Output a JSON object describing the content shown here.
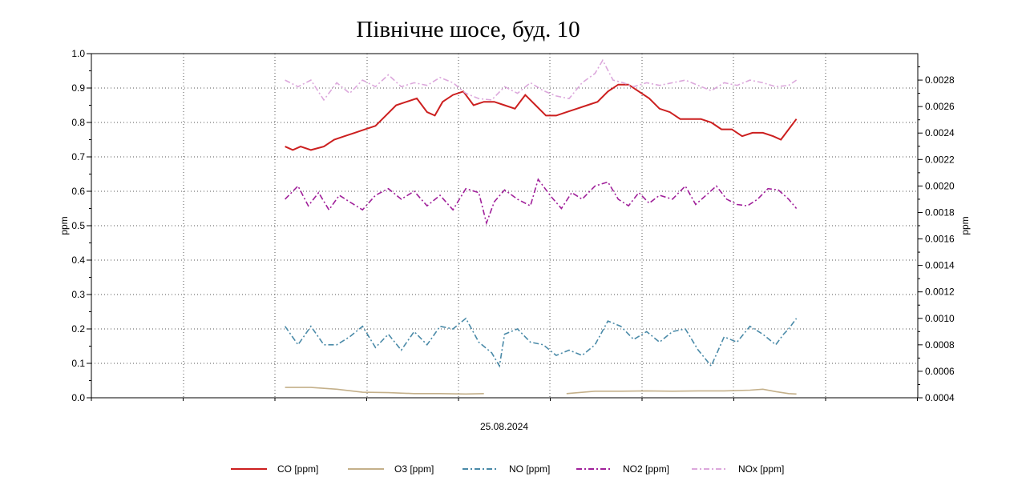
{
  "chart_data": {
    "type": "line",
    "title": "Північне шосе, буд. 10",
    "xlabel": "25.08.2024",
    "ylabel_left": "ppm",
    "ylabel_right": "ppm",
    "ylim_left": [
      0,
      1.0
    ],
    "ylim_right": [
      0.0004,
      0.003
    ],
    "left_ticks": [
      "0.0",
      "0.1",
      "0.2",
      "0.3",
      "0.4",
      "0.5",
      "0.6",
      "0.7",
      "0.8",
      "0.9",
      "1.0"
    ],
    "right_ticks": [
      "0.0004",
      "0.0006",
      "0.0008",
      "0.0010",
      "0.0012",
      "0.0014",
      "0.0016",
      "0.0018",
      "0.0020",
      "0.0022",
      "0.0024",
      "0.0026",
      "0.0028"
    ],
    "x_range_hours": [
      0,
      24
    ],
    "grid": true,
    "legend_position": "bottom",
    "series": [
      {
        "name": "CO [ppm]",
        "axis": "left",
        "color": "#cc1f1f",
        "dash": "solid",
        "points": [
          [
            7.5,
            0.73
          ],
          [
            7.8,
            0.72
          ],
          [
            8.1,
            0.73
          ],
          [
            8.5,
            0.72
          ],
          [
            9.0,
            0.73
          ],
          [
            9.4,
            0.75
          ],
          [
            9.8,
            0.76
          ],
          [
            10.2,
            0.77
          ],
          [
            10.6,
            0.78
          ],
          [
            11.0,
            0.79
          ],
          [
            11.4,
            0.82
          ],
          [
            11.8,
            0.85
          ],
          [
            12.2,
            0.86
          ],
          [
            12.6,
            0.87
          ],
          [
            13.0,
            0.83
          ],
          [
            13.3,
            0.82
          ],
          [
            13.6,
            0.86
          ],
          [
            14.0,
            0.88
          ],
          [
            14.4,
            0.89
          ],
          [
            14.8,
            0.85
          ],
          [
            15.2,
            0.86
          ],
          [
            15.6,
            0.86
          ],
          [
            16.0,
            0.85
          ],
          [
            16.4,
            0.84
          ],
          [
            16.8,
            0.88
          ],
          [
            17.2,
            0.85
          ],
          [
            17.6,
            0.82
          ],
          [
            18.0,
            0.82
          ],
          [
            18.4,
            0.83
          ],
          [
            18.8,
            0.84
          ],
          [
            19.2,
            0.85
          ],
          [
            19.6,
            0.86
          ],
          [
            20.0,
            0.89
          ],
          [
            20.4,
            0.91
          ],
          [
            20.8,
            0.91
          ],
          [
            21.2,
            0.89
          ],
          [
            21.6,
            0.87
          ],
          [
            22.0,
            0.84
          ],
          [
            22.4,
            0.83
          ],
          [
            22.8,
            0.81
          ],
          [
            23.2,
            0.81
          ],
          [
            23.6,
            0.81
          ],
          [
            24.0,
            0.8
          ],
          [
            24.4,
            0.78
          ],
          [
            24.8,
            0.78
          ],
          [
            25.2,
            0.76
          ],
          [
            25.6,
            0.77
          ],
          [
            26.0,
            0.77
          ],
          [
            26.4,
            0.76
          ],
          [
            26.7,
            0.75
          ],
          [
            27.0,
            0.78
          ],
          [
            27.3,
            0.81
          ]
        ]
      },
      {
        "name": "O3 [ppm]",
        "axis": "left",
        "color": "#c4b08a",
        "dash": "solid",
        "points": [
          [
            7.5,
            0.03
          ],
          [
            8.5,
            0.03
          ],
          [
            9.5,
            0.025
          ],
          [
            10.5,
            0.016
          ],
          [
            11.5,
            0.015
          ],
          [
            12.5,
            0.012
          ],
          [
            13.5,
            0.012
          ],
          [
            14.5,
            0.011
          ],
          [
            15.2,
            0.012
          ],
          [
            null,
            null
          ],
          [
            18.4,
            0.012
          ],
          [
            19.5,
            0.019
          ],
          [
            20.5,
            0.019
          ],
          [
            21.5,
            0.02
          ],
          [
            22.5,
            0.019
          ],
          [
            23.5,
            0.02
          ],
          [
            24.5,
            0.02
          ],
          [
            25.5,
            0.022
          ],
          [
            26.0,
            0.025
          ],
          [
            26.5,
            0.018
          ],
          [
            27.0,
            0.012
          ],
          [
            27.3,
            0.011
          ]
        ]
      },
      {
        "name": "NO [ppm]",
        "axis": "right",
        "color": "#4a8aa8",
        "dash": "dashdot",
        "points": [
          [
            7.5,
            0.00094
          ],
          [
            8.0,
            0.0008
          ],
          [
            8.5,
            0.00094
          ],
          [
            9.0,
            0.0008
          ],
          [
            9.5,
            0.0008
          ],
          [
            10.0,
            0.00086
          ],
          [
            10.5,
            0.00094
          ],
          [
            11.0,
            0.00078
          ],
          [
            11.5,
            0.00088
          ],
          [
            12.0,
            0.00076
          ],
          [
            12.5,
            0.0009
          ],
          [
            13.0,
            0.0008
          ],
          [
            13.5,
            0.00094
          ],
          [
            14.0,
            0.00092
          ],
          [
            14.5,
            0.001
          ],
          [
            15.0,
            0.00082
          ],
          [
            15.5,
            0.00074
          ],
          [
            15.8,
            0.00064
          ],
          [
            16.0,
            0.00088
          ],
          [
            16.5,
            0.00092
          ],
          [
            17.0,
            0.00082
          ],
          [
            17.5,
            0.0008
          ],
          [
            18.0,
            0.00072
          ],
          [
            18.5,
            0.00076
          ],
          [
            19.0,
            0.00072
          ],
          [
            19.5,
            0.0008
          ],
          [
            20.0,
            0.00098
          ],
          [
            20.5,
            0.00094
          ],
          [
            21.0,
            0.00084
          ],
          [
            21.5,
            0.0009
          ],
          [
            22.0,
            0.00082
          ],
          [
            22.5,
            0.0009
          ],
          [
            23.0,
            0.00092
          ],
          [
            23.5,
            0.00076
          ],
          [
            24.0,
            0.00064
          ],
          [
            24.5,
            0.00086
          ],
          [
            25.0,
            0.00082
          ],
          [
            25.5,
            0.00094
          ],
          [
            26.0,
            0.00088
          ],
          [
            26.5,
            0.0008
          ],
          [
            26.8,
            0.00088
          ],
          [
            27.0,
            0.00092
          ],
          [
            27.3,
            0.001
          ]
        ]
      },
      {
        "name": "NO2 [ppm]",
        "axis": "right",
        "color": "#a0209a",
        "dash": "dashdot",
        "points": [
          [
            7.5,
            0.0019
          ],
          [
            8.0,
            0.002
          ],
          [
            8.4,
            0.00185
          ],
          [
            8.8,
            0.00195
          ],
          [
            9.2,
            0.00182
          ],
          [
            9.6,
            0.00193
          ],
          [
            10.0,
            0.00188
          ],
          [
            10.5,
            0.00182
          ],
          [
            11.0,
            0.00193
          ],
          [
            11.5,
            0.00198
          ],
          [
            12.0,
            0.0019
          ],
          [
            12.5,
            0.00196
          ],
          [
            13.0,
            0.00185
          ],
          [
            13.5,
            0.00193
          ],
          [
            14.0,
            0.00182
          ],
          [
            14.5,
            0.00198
          ],
          [
            15.0,
            0.00195
          ],
          [
            15.3,
            0.00172
          ],
          [
            15.6,
            0.00188
          ],
          [
            16.0,
            0.00197
          ],
          [
            16.5,
            0.0019
          ],
          [
            17.0,
            0.00185
          ],
          [
            17.3,
            0.00205
          ],
          [
            17.8,
            0.00192
          ],
          [
            18.2,
            0.00183
          ],
          [
            18.6,
            0.00195
          ],
          [
            19.0,
            0.0019
          ],
          [
            19.5,
            0.002
          ],
          [
            20.0,
            0.00203
          ],
          [
            20.4,
            0.0019
          ],
          [
            20.8,
            0.00185
          ],
          [
            21.2,
            0.00195
          ],
          [
            21.6,
            0.00187
          ],
          [
            22.0,
            0.00193
          ],
          [
            22.5,
            0.0019
          ],
          [
            23.0,
            0.002
          ],
          [
            23.4,
            0.00186
          ],
          [
            23.8,
            0.00193
          ],
          [
            24.2,
            0.002
          ],
          [
            24.6,
            0.0019
          ],
          [
            25.0,
            0.00186
          ],
          [
            25.4,
            0.00185
          ],
          [
            25.8,
            0.0019
          ],
          [
            26.2,
            0.00198
          ],
          [
            26.6,
            0.00197
          ],
          [
            27.0,
            0.0019
          ],
          [
            27.3,
            0.00183
          ]
        ]
      },
      {
        "name": "NOx [ppm]",
        "axis": "right",
        "color": "#dca8dc",
        "dash": "dashdot",
        "points": [
          [
            7.5,
            0.0028
          ],
          [
            8.0,
            0.00275
          ],
          [
            8.5,
            0.0028
          ],
          [
            9.0,
            0.00265
          ],
          [
            9.5,
            0.00278
          ],
          [
            10.0,
            0.0027
          ],
          [
            10.5,
            0.0028
          ],
          [
            11.0,
            0.00275
          ],
          [
            11.5,
            0.00284
          ],
          [
            12.0,
            0.00275
          ],
          [
            12.5,
            0.00278
          ],
          [
            13.0,
            0.00276
          ],
          [
            13.5,
            0.00282
          ],
          [
            14.0,
            0.00278
          ],
          [
            14.5,
            0.0027
          ],
          [
            15.0,
            0.00266
          ],
          [
            15.5,
            0.00265
          ],
          [
            16.0,
            0.00275
          ],
          [
            16.5,
            0.0027
          ],
          [
            17.0,
            0.00278
          ],
          [
            17.5,
            0.00272
          ],
          [
            18.0,
            0.00268
          ],
          [
            18.5,
            0.00266
          ],
          [
            19.0,
            0.00278
          ],
          [
            19.5,
            0.00285
          ],
          [
            19.8,
            0.00295
          ],
          [
            20.2,
            0.0028
          ],
          [
            20.6,
            0.00278
          ],
          [
            21.0,
            0.00275
          ],
          [
            21.5,
            0.00278
          ],
          [
            22.0,
            0.00276
          ],
          [
            22.5,
            0.00278
          ],
          [
            23.0,
            0.0028
          ],
          [
            23.5,
            0.00276
          ],
          [
            24.0,
            0.00272
          ],
          [
            24.5,
            0.00278
          ],
          [
            25.0,
            0.00276
          ],
          [
            25.5,
            0.0028
          ],
          [
            26.0,
            0.00278
          ],
          [
            26.5,
            0.00275
          ],
          [
            27.0,
            0.00276
          ],
          [
            27.3,
            0.0028
          ]
        ]
      }
    ]
  }
}
